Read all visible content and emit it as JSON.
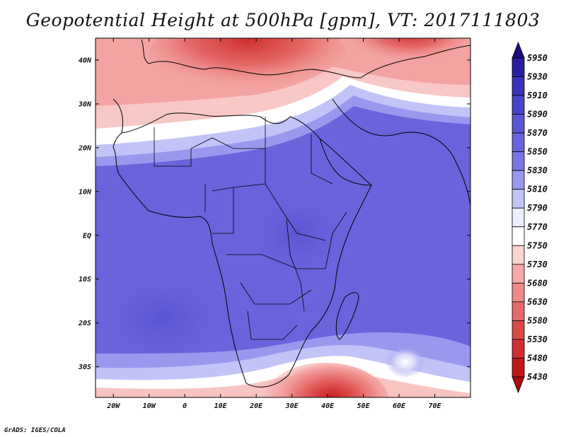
{
  "title": "Geopotential Height at 500hPa [gpm], VT: 2017111803",
  "credit": "GrADS: IGES/COLA",
  "map": {
    "type": "filled-contour",
    "variable": "Geopotential Height at 500hPa",
    "units": "gpm",
    "lon_range": [
      -25,
      80
    ],
    "lat_range": [
      -37,
      45
    ],
    "lat_ticks": [
      {
        "value": 40,
        "label": "40N"
      },
      {
        "value": 30,
        "label": "30N"
      },
      {
        "value": 20,
        "label": "20N"
      },
      {
        "value": 10,
        "label": "10N"
      },
      {
        "value": 0,
        "label": "EQ"
      },
      {
        "value": -10,
        "label": "10S"
      },
      {
        "value": -20,
        "label": "20S"
      },
      {
        "value": -30,
        "label": "30S"
      }
    ],
    "lon_ticks": [
      {
        "value": -20,
        "label": "20W"
      },
      {
        "value": -10,
        "label": "10W"
      },
      {
        "value": 0,
        "label": "0"
      },
      {
        "value": 10,
        "label": "10E"
      },
      {
        "value": 20,
        "label": "20E"
      },
      {
        "value": 30,
        "label": "30E"
      },
      {
        "value": 40,
        "label": "40E"
      },
      {
        "value": 50,
        "label": "50E"
      },
      {
        "value": 60,
        "label": "60E"
      },
      {
        "value": 70,
        "label": "70E"
      }
    ]
  },
  "colorbar": {
    "levels": [
      5950,
      5930,
      5910,
      5890,
      5870,
      5850,
      5830,
      5810,
      5790,
      5770,
      5750,
      5730,
      5680,
      5630,
      5580,
      5530,
      5480,
      5430
    ],
    "colors": [
      "#1c0c80",
      "#2a1fa0",
      "#3a32b8",
      "#4a45c8",
      "#5a55d2",
      "#6a64dc",
      "#7a74e4",
      "#9a98ee",
      "#c2c4f8",
      "#eceeff",
      "#ffffff",
      "#fbd4d2",
      "#f5aaa8",
      "#ee8a88",
      "#e66a68",
      "#dc4a48",
      "#d02e2e",
      "#c01818",
      "#a80c0c"
    ]
  }
}
